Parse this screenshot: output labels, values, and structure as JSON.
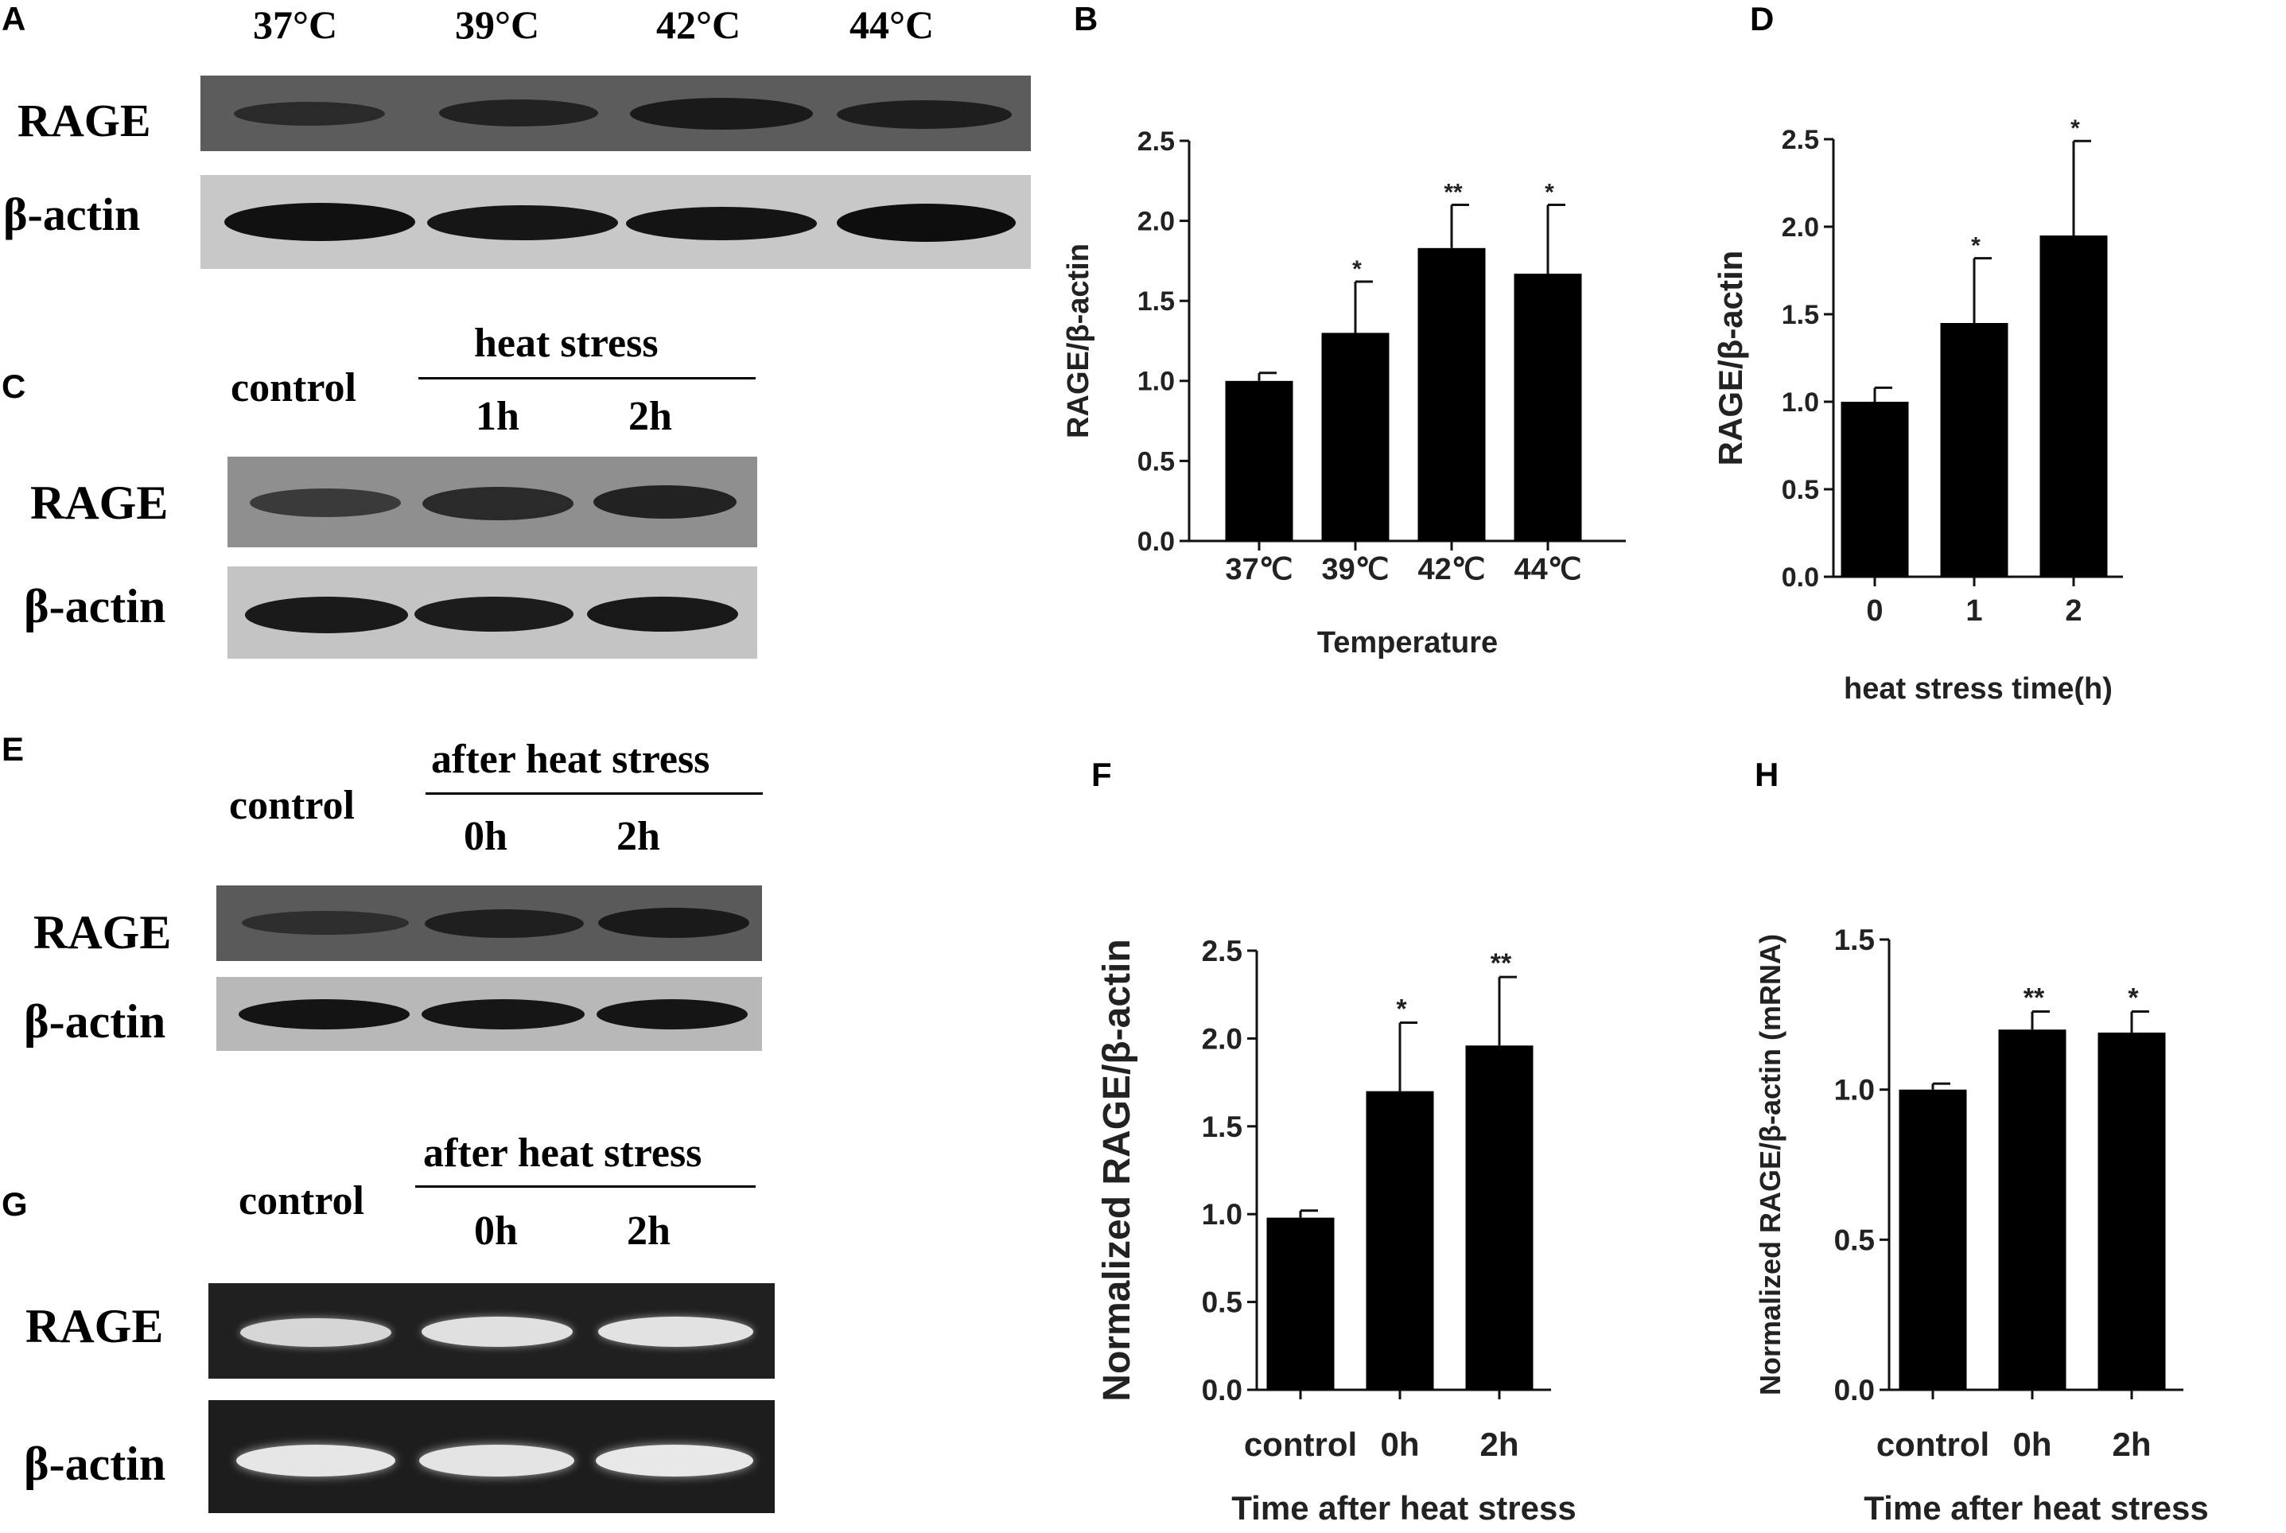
{
  "panels": {
    "A": {
      "letter": "A",
      "lanes": [
        "37°C",
        "39°C",
        "42°C",
        "44°C"
      ],
      "rows": [
        "RAGE",
        "β-actin"
      ]
    },
    "C": {
      "letter": "C",
      "control": "control",
      "group": "heat stress",
      "lanes": [
        "1h",
        "2h"
      ],
      "rows": [
        "RAGE",
        "β-actin"
      ]
    },
    "E": {
      "letter": "E",
      "control": "control",
      "group": "after heat stress",
      "lanes": [
        "0h",
        "2h"
      ],
      "rows": [
        "RAGE",
        "β-actin"
      ]
    },
    "G": {
      "letter": "G",
      "control": "control",
      "group": "after heat stress",
      "lanes": [
        "0h",
        "2h"
      ],
      "rows": [
        "RAGE",
        "β-actin"
      ]
    },
    "B": {
      "letter": "B"
    },
    "D": {
      "letter": "D"
    },
    "F": {
      "letter": "F"
    },
    "H": {
      "letter": "H"
    }
  },
  "chart_data": [
    {
      "panel": "B",
      "type": "bar",
      "categories": [
        "37℃",
        "39℃",
        "42℃",
        "44℃"
      ],
      "values": [
        1.0,
        1.3,
        1.83,
        1.67
      ],
      "errors": [
        0.05,
        0.32,
        0.27,
        0.43
      ],
      "significance": [
        "",
        "*",
        "**",
        "*"
      ],
      "xlabel": "Temperature",
      "ylabel": "RAGE/β-actin",
      "ylim": [
        0,
        2.5
      ],
      "yticks": [
        "0.0",
        "0.5",
        "1.0",
        "1.5",
        "2.0",
        "2.5"
      ],
      "bar_color": "#000000"
    },
    {
      "panel": "D",
      "type": "bar",
      "categories": [
        "0",
        "1",
        "2"
      ],
      "values": [
        1.0,
        1.45,
        1.95
      ],
      "errors": [
        0.08,
        0.37,
        0.54
      ],
      "significance": [
        "",
        "*",
        "*"
      ],
      "xlabel": "heat stress time(h)",
      "ylabel": "RAGE/β-actin",
      "ylim": [
        0,
        2.5
      ],
      "yticks": [
        "0.0",
        "0.5",
        "1.0",
        "1.5",
        "2.0",
        "2.5"
      ],
      "bar_color": "#000000"
    },
    {
      "panel": "F",
      "type": "bar",
      "categories": [
        "control",
        "0h",
        "2h"
      ],
      "values": [
        0.98,
        1.7,
        1.96
      ],
      "errors": [
        0.04,
        0.39,
        0.39
      ],
      "significance": [
        "",
        "*",
        "**"
      ],
      "xlabel": "Time after heat stress",
      "ylabel": "Normalized RAGE/β-actin",
      "ylim": [
        0,
        2.5
      ],
      "yticks": [
        "0.0",
        "0.5",
        "1.0",
        "1.5",
        "2.0",
        "2.5"
      ],
      "bar_color": "#000000"
    },
    {
      "panel": "H",
      "type": "bar",
      "categories": [
        "control",
        "0h",
        "2h"
      ],
      "values": [
        1.0,
        1.2,
        1.19
      ],
      "errors": [
        0.02,
        0.06,
        0.07
      ],
      "significance": [
        "",
        "**",
        "*"
      ],
      "xlabel": "Time after heat stress",
      "ylabel": "Normalized RAGE/β-actin (mRNA)",
      "ylim": [
        0,
        1.5
      ],
      "yticks": [
        "0.0",
        "0.5",
        "1.0",
        "1.5"
      ],
      "bar_color": "#000000"
    }
  ]
}
